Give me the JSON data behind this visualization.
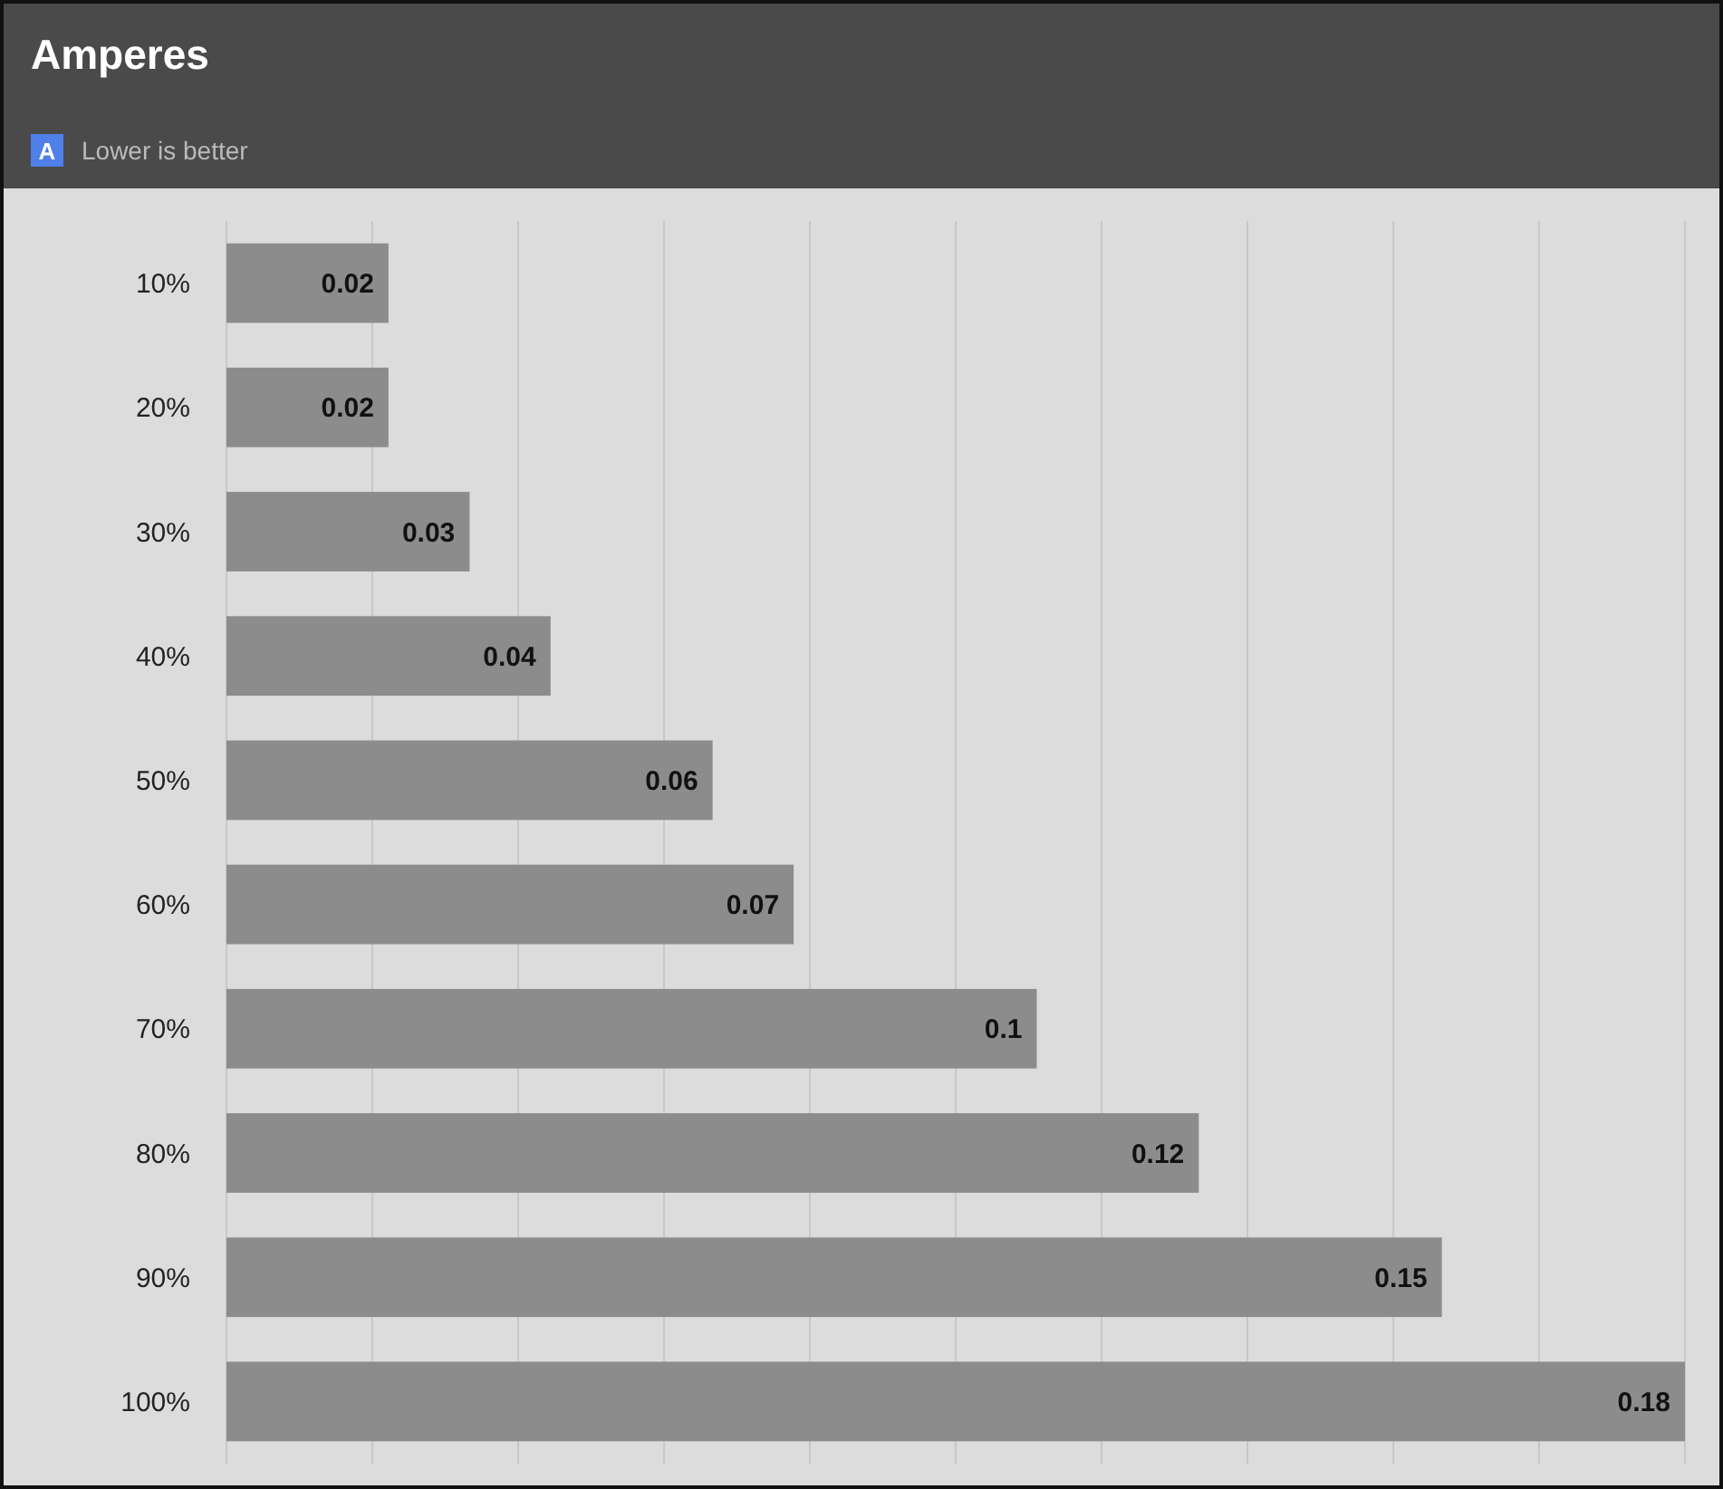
{
  "chart_data": {
    "type": "bar",
    "orientation": "horizontal",
    "title": "Amperes",
    "annotations": [
      "A",
      "Lower is better"
    ],
    "categories": [
      "10%",
      "20%",
      "30%",
      "40%",
      "50%",
      "60%",
      "70%",
      "80%",
      "90%",
      "100%"
    ],
    "values": [
      0.02,
      0.02,
      0.03,
      0.04,
      0.06,
      0.07,
      0.1,
      0.12,
      0.15,
      0.18
    ],
    "color": "#8c8c8c",
    "data_labels": true,
    "xlim": [
      0,
      0.18
    ],
    "xticks": [
      {
        "value": 0,
        "label": null
      },
      {
        "value": 0.018,
        "label": null
      },
      {
        "value": 0.036,
        "label": null
      },
      {
        "value": 0.054,
        "label": null
      },
      {
        "value": 0.072,
        "label": null
      },
      {
        "value": 0.09,
        "label": null
      },
      {
        "value": 0.108,
        "label": null
      },
      {
        "value": 0.126,
        "label": null
      },
      {
        "value": 0.144,
        "label": null
      },
      {
        "value": 0.162,
        "label": null
      },
      {
        "value": 0.18,
        "label": null
      }
    ],
    "grid": "x"
  }
}
